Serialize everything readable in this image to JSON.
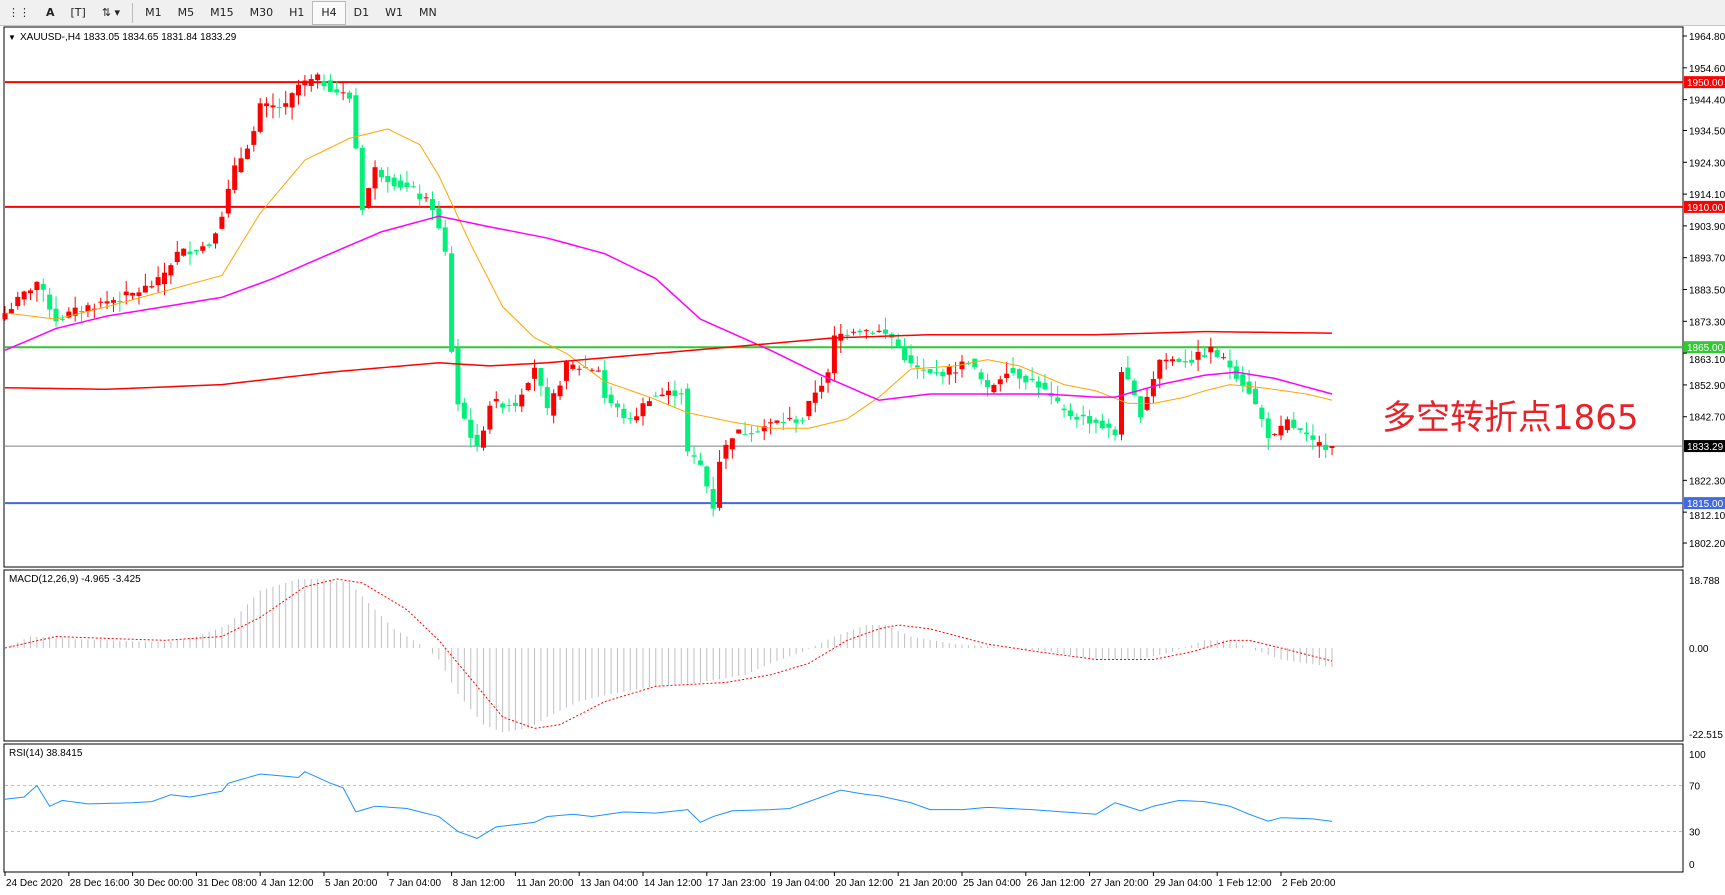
{
  "toolbar": {
    "icons": [
      "grid-icon",
      "text-icon",
      "text-label-icon",
      "arrows-icon"
    ],
    "timeframes": [
      "M1",
      "M5",
      "M15",
      "M30",
      "H1",
      "H4",
      "D1",
      "W1",
      "MN"
    ],
    "active": "H4"
  },
  "chart": {
    "symbol_info": "XAUUSD-,H4  1833.05 1834.65 1831.84 1833.29",
    "annotation": "多空转折点1865",
    "price_ticks": [
      "1964.80",
      "1954.60",
      "1944.40",
      "1934.50",
      "1924.30",
      "1914.10",
      "1903.90",
      "1893.70",
      "1883.50",
      "1873.30",
      "1863.10",
      "1852.90",
      "1842.70",
      "1822.30",
      "1812.10",
      "1802.20"
    ],
    "levels": [
      {
        "price": 1950.0,
        "label": "1950.00",
        "color": "#ff0000"
      },
      {
        "price": 1910.0,
        "label": "1910.00",
        "color": "#ff0000"
      },
      {
        "price": 1865.0,
        "label": "1865.00",
        "color": "#32c832"
      },
      {
        "price": 1833.29,
        "label": "1833.29",
        "color": "#808080"
      },
      {
        "price": 1815.0,
        "label": "1815.00",
        "color": "#4169e1"
      }
    ],
    "colors": {
      "bull": "#ff0000",
      "bear": "#00f07a",
      "ma_fast": "#ffa500",
      "ma_mid": "#ff00ff",
      "ma_slow": "#ff0000",
      "rsi": "#1e90ff",
      "macd_hist": "#c0c0c0",
      "macd_signal": "#ff0000"
    },
    "time_labels": [
      "24 Dec 2020",
      "28 Dec 16:00",
      "30 Dec 00:00",
      "31 Dec 08:00",
      "4 Jan 12:00",
      "5 Jan 20:00",
      "7 Jan 04:00",
      "8 Jan 12:00",
      "11 Jan 20:00",
      "13 Jan 04:00",
      "14 Jan 12:00",
      "17 Jan 23:00",
      "19 Jan 04:00",
      "20 Jan 12:00",
      "21 Jan 20:00",
      "25 Jan 04:00",
      "26 Jan 12:00",
      "27 Jan 20:00",
      "29 Jan 04:00",
      "1 Feb 12:00",
      "2 Feb 20:00"
    ]
  },
  "chart_data": {
    "type": "candlestick",
    "bars": 209,
    "close_path": [
      [
        0,
        1876
      ],
      [
        1,
        1878
      ],
      [
        5,
        1886
      ],
      [
        8,
        1874
      ],
      [
        13,
        1878
      ],
      [
        20,
        1882
      ],
      [
        24,
        1886
      ],
      [
        27,
        1895
      ],
      [
        32,
        1898
      ],
      [
        34,
        1908
      ],
      [
        36,
        1922
      ],
      [
        39,
        1934
      ],
      [
        40,
        1942
      ],
      [
        44,
        1942
      ],
      [
        46,
        1949
      ],
      [
        49,
        1951
      ],
      [
        52,
        1947
      ],
      [
        54,
        1945
      ],
      [
        55,
        1929
      ],
      [
        56,
        1910
      ],
      [
        58,
        1922
      ],
      [
        61,
        1918
      ],
      [
        64,
        1915
      ],
      [
        67,
        1910
      ],
      [
        69,
        1895
      ],
      [
        70,
        1864
      ],
      [
        71,
        1847
      ],
      [
        74,
        1832
      ],
      [
        76,
        1847
      ],
      [
        80,
        1847
      ],
      [
        83,
        1859
      ],
      [
        85,
        1844
      ],
      [
        88,
        1859
      ],
      [
        93,
        1858
      ],
      [
        94,
        1849
      ],
      [
        98,
        1841
      ],
      [
        101,
        1849
      ],
      [
        106,
        1851
      ],
      [
        107,
        1831
      ],
      [
        109,
        1827
      ],
      [
        111,
        1814
      ],
      [
        112,
        1829
      ],
      [
        114,
        1837
      ],
      [
        118,
        1839
      ],
      [
        121,
        1841
      ],
      [
        125,
        1842
      ],
      [
        127,
        1851
      ],
      [
        129,
        1856
      ],
      [
        130,
        1868
      ],
      [
        133,
        1871
      ],
      [
        137,
        1870
      ],
      [
        139,
        1868
      ],
      [
        142,
        1859
      ],
      [
        145,
        1856
      ],
      [
        149,
        1858
      ],
      [
        151,
        1861
      ],
      [
        154,
        1851
      ],
      [
        157,
        1858
      ],
      [
        162,
        1853
      ],
      [
        166,
        1844
      ],
      [
        171,
        1841
      ],
      [
        174,
        1837
      ],
      [
        175,
        1858
      ],
      [
        178,
        1844
      ],
      [
        181,
        1861
      ],
      [
        183,
        1861
      ],
      [
        186,
        1861
      ],
      [
        189,
        1864
      ],
      [
        192,
        1859
      ],
      [
        195,
        1851
      ],
      [
        198,
        1837
      ],
      [
        199,
        1836
      ],
      [
        201,
        1841
      ],
      [
        204,
        1836
      ],
      [
        205,
        1834
      ],
      [
        208,
        1833.29
      ]
    ],
    "ma_fast": [
      [
        0,
        1876
      ],
      [
        8,
        1874
      ],
      [
        16,
        1878
      ],
      [
        25,
        1883
      ],
      [
        34,
        1888
      ],
      [
        40,
        1908
      ],
      [
        47,
        1925
      ],
      [
        54,
        1932
      ],
      [
        60,
        1935
      ],
      [
        65,
        1930
      ],
      [
        68,
        1920
      ],
      [
        73,
        1898
      ],
      [
        78,
        1878
      ],
      [
        83,
        1868
      ],
      [
        88,
        1863
      ],
      [
        94,
        1854
      ],
      [
        101,
        1849
      ],
      [
        107,
        1844
      ],
      [
        114,
        1841
      ],
      [
        120,
        1839
      ],
      [
        126,
        1839
      ],
      [
        132,
        1842
      ],
      [
        137,
        1849
      ],
      [
        142,
        1858
      ],
      [
        149,
        1859
      ],
      [
        154,
        1861
      ],
      [
        159,
        1859
      ],
      [
        166,
        1853
      ],
      [
        171,
        1851
      ],
      [
        176,
        1847
      ],
      [
        180,
        1847
      ],
      [
        185,
        1849
      ],
      [
        188,
        1851
      ],
      [
        192,
        1853
      ],
      [
        197,
        1852
      ],
      [
        204,
        1850
      ],
      [
        208,
        1848
      ]
    ],
    "ma_mid": [
      [
        0,
        1864
      ],
      [
        8,
        1871
      ],
      [
        16,
        1875
      ],
      [
        25,
        1878
      ],
      [
        34,
        1881
      ],
      [
        42,
        1887
      ],
      [
        51,
        1895
      ],
      [
        59,
        1902
      ],
      [
        68,
        1907
      ],
      [
        75,
        1904
      ],
      [
        85,
        1900
      ],
      [
        94,
        1895
      ],
      [
        102,
        1887
      ],
      [
        109,
        1874
      ],
      [
        120,
        1864
      ],
      [
        128,
        1856
      ],
      [
        137,
        1848
      ],
      [
        145,
        1850
      ],
      [
        154,
        1850
      ],
      [
        163,
        1850
      ],
      [
        171,
        1849
      ],
      [
        174,
        1849
      ],
      [
        181,
        1853
      ],
      [
        188,
        1856
      ],
      [
        193,
        1857
      ],
      [
        199,
        1855
      ],
      [
        208,
        1850
      ]
    ],
    "ma_slow": [
      [
        0,
        1852
      ],
      [
        16,
        1851.5
      ],
      [
        34,
        1853
      ],
      [
        51,
        1857
      ],
      [
        68,
        1860
      ],
      [
        76,
        1859
      ],
      [
        85,
        1860
      ],
      [
        102,
        1863
      ],
      [
        119,
        1866
      ],
      [
        130,
        1868
      ],
      [
        145,
        1869
      ],
      [
        171,
        1869
      ],
      [
        188,
        1870
      ],
      [
        208,
        1869.5
      ]
    ],
    "macd": {
      "label": "MACD(12,26,9) -4.965 -3.425",
      "ticks": [
        "18.788",
        "0.00",
        "-22.515"
      ],
      "max": 18.788,
      "min": -22.515,
      "hist": [
        [
          0,
          0
        ],
        [
          4,
          3
        ],
        [
          16,
          2
        ],
        [
          25,
          1.5
        ],
        [
          30,
          3
        ],
        [
          35,
          6
        ],
        [
          40,
          15
        ],
        [
          46,
          18
        ],
        [
          50,
          18
        ],
        [
          54,
          17
        ],
        [
          58,
          10
        ],
        [
          61,
          5
        ],
        [
          66,
          0
        ],
        [
          68,
          -3
        ],
        [
          71,
          -12
        ],
        [
          75,
          -20
        ],
        [
          78,
          -22
        ],
        [
          82,
          -21
        ],
        [
          85,
          -18
        ],
        [
          90,
          -14
        ],
        [
          95,
          -12
        ],
        [
          102,
          -10
        ],
        [
          109,
          -9
        ],
        [
          116,
          -7
        ],
        [
          120,
          -4
        ],
        [
          125,
          -1
        ],
        [
          130,
          3
        ],
        [
          135,
          6
        ],
        [
          138,
          6
        ],
        [
          142,
          3
        ],
        [
          149,
          1
        ],
        [
          157,
          0
        ],
        [
          164,
          -1
        ],
        [
          171,
          -3
        ],
        [
          178,
          -3
        ],
        [
          183,
          -1
        ],
        [
          188,
          2
        ],
        [
          192,
          2
        ],
        [
          195,
          0
        ],
        [
          200,
          -3
        ],
        [
          208,
          -5
        ]
      ],
      "signal": [
        [
          0,
          0
        ],
        [
          8,
          3
        ],
        [
          16,
          2.5
        ],
        [
          25,
          2
        ],
        [
          34,
          3
        ],
        [
          40,
          8
        ],
        [
          47,
          16
        ],
        [
          52,
          18
        ],
        [
          56,
          17
        ],
        [
          63,
          10
        ],
        [
          68,
          2
        ],
        [
          73,
          -8
        ],
        [
          78,
          -18
        ],
        [
          83,
          -21
        ],
        [
          87,
          -20
        ],
        [
          94,
          -14
        ],
        [
          102,
          -10
        ],
        [
          113,
          -9
        ],
        [
          120,
          -7
        ],
        [
          126,
          -4
        ],
        [
          132,
          2
        ],
        [
          137,
          5
        ],
        [
          140,
          6
        ],
        [
          145,
          5
        ],
        [
          154,
          1
        ],
        [
          162,
          -1
        ],
        [
          171,
          -3
        ],
        [
          180,
          -3
        ],
        [
          186,
          -1
        ],
        [
          192,
          2
        ],
        [
          195,
          2
        ],
        [
          200,
          0
        ],
        [
          208,
          -3.4
        ]
      ]
    },
    "rsi": {
      "label": "RSI(14) 38.8415",
      "ticks": [
        "100",
        "70",
        "30",
        "0"
      ],
      "levels": [
        70,
        30
      ],
      "values": [
        [
          0,
          58
        ],
        [
          3,
          60
        ],
        [
          5,
          70
        ],
        [
          7,
          52
        ],
        [
          9,
          57
        ],
        [
          13,
          54
        ],
        [
          20,
          55
        ],
        [
          23,
          56
        ],
        [
          26,
          62
        ],
        [
          29,
          60
        ],
        [
          34,
          65
        ],
        [
          35,
          72
        ],
        [
          40,
          80
        ],
        [
          46,
          77
        ],
        [
          47,
          82
        ],
        [
          51,
          72
        ],
        [
          53,
          68
        ],
        [
          55,
          47
        ],
        [
          58,
          52
        ],
        [
          63,
          50
        ],
        [
          68,
          43
        ],
        [
          71,
          30
        ],
        [
          74,
          24
        ],
        [
          77,
          34
        ],
        [
          83,
          38
        ],
        [
          85,
          43
        ],
        [
          89,
          45
        ],
        [
          92,
          43
        ],
        [
          97,
          47
        ],
        [
          102,
          46
        ],
        [
          107,
          49
        ],
        [
          109,
          38
        ],
        [
          111,
          43
        ],
        [
          114,
          48
        ],
        [
          120,
          49
        ],
        [
          123,
          50
        ],
        [
          127,
          58
        ],
        [
          131,
          66
        ],
        [
          134,
          63
        ],
        [
          137,
          61
        ],
        [
          142,
          55
        ],
        [
          145,
          49
        ],
        [
          150,
          49
        ],
        [
          154,
          51
        ],
        [
          161,
          49
        ],
        [
          166,
          47
        ],
        [
          171,
          45
        ],
        [
          174,
          55
        ],
        [
          178,
          48
        ],
        [
          180,
          52
        ],
        [
          184,
          57
        ],
        [
          188,
          56
        ],
        [
          192,
          52
        ],
        [
          195,
          45
        ],
        [
          198,
          39
        ],
        [
          200,
          42
        ],
        [
          205,
          41
        ],
        [
          208,
          38.8
        ]
      ]
    }
  }
}
